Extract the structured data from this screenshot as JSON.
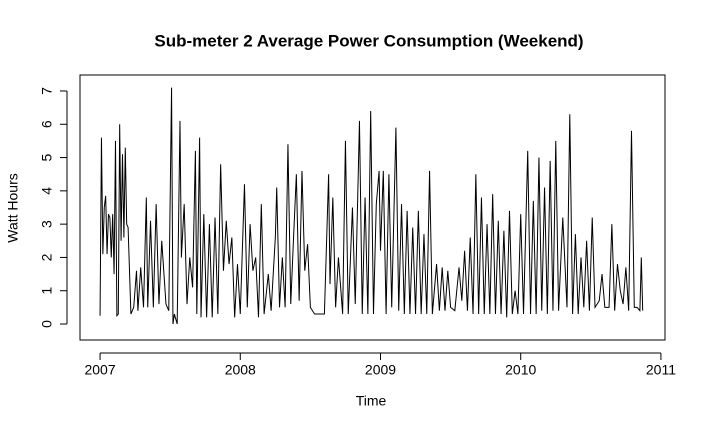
{
  "chart_data": {
    "type": "line",
    "title": "Sub-meter 2 Average Power Consumption (Weekend)",
    "xlabel": "Time",
    "ylabel": "Watt Hours",
    "color": "#000000",
    "xlim": [
      2006.857,
      2011.029
    ],
    "ylim": [
      -0.48,
      7.48
    ],
    "xticks": [
      2007,
      2008,
      2009,
      2010,
      2011
    ],
    "yticks": [
      0,
      1,
      2,
      3,
      4,
      5,
      6,
      7
    ],
    "x": [
      2007.0,
      2007.01,
      2007.02,
      2007.03,
      2007.04,
      2007.05,
      2007.06,
      2007.07,
      2007.08,
      2007.09,
      2007.1,
      2007.11,
      2007.12,
      2007.13,
      2007.14,
      2007.15,
      2007.16,
      2007.17,
      2007.18,
      2007.19,
      2007.2,
      2007.22,
      2007.24,
      2007.26,
      2007.27,
      2007.29,
      2007.31,
      2007.33,
      2007.34,
      2007.36,
      2007.38,
      2007.4,
      2007.42,
      2007.44,
      2007.47,
      2007.49,
      2007.51,
      2007.52,
      2007.53,
      2007.55,
      2007.57,
      2007.58,
      2007.6,
      2007.62,
      2007.64,
      2007.66,
      2007.68,
      2007.69,
      2007.71,
      2007.72,
      2007.74,
      2007.76,
      2007.78,
      2007.8,
      2007.82,
      2007.84,
      2007.86,
      2007.88,
      2007.9,
      2007.92,
      2007.94,
      2007.96,
      2007.98,
      2008.0,
      2008.03,
      2008.05,
      2008.07,
      2008.09,
      2008.11,
      2008.13,
      2008.15,
      2008.17,
      2008.2,
      2008.22,
      2008.25,
      2008.26,
      2008.28,
      2008.3,
      2008.32,
      2008.34,
      2008.36,
      2008.38,
      2008.4,
      2008.42,
      2008.44,
      2008.46,
      2008.48,
      2008.5,
      2008.53,
      2008.6,
      2008.63,
      2008.64,
      2008.66,
      2008.68,
      2008.7,
      2008.73,
      2008.75,
      2008.77,
      2008.8,
      2008.82,
      2008.85,
      2008.87,
      2008.89,
      2008.91,
      2008.93,
      2008.95,
      2008.97,
      2008.99,
      2009.0,
      2009.02,
      2009.04,
      2009.06,
      2009.08,
      2009.11,
      2009.13,
      2009.15,
      2009.17,
      2009.19,
      2009.21,
      2009.23,
      2009.25,
      2009.27,
      2009.29,
      2009.31,
      2009.33,
      2009.35,
      2009.37,
      2009.4,
      2009.42,
      2009.44,
      2009.46,
      2009.48,
      2009.5,
      2009.53,
      2009.56,
      2009.58,
      2009.6,
      2009.62,
      2009.64,
      2009.66,
      2009.68,
      2009.7,
      2009.72,
      2009.74,
      2009.76,
      2009.78,
      2009.8,
      2009.82,
      2009.84,
      2009.86,
      2009.88,
      2009.9,
      2009.92,
      2009.94,
      2009.96,
      2009.98,
      2010.0,
      2010.02,
      2010.05,
      2010.07,
      2010.09,
      2010.11,
      2010.13,
      2010.15,
      2010.17,
      2010.19,
      2010.21,
      2010.23,
      2010.25,
      2010.27,
      2010.3,
      2010.33,
      2010.35,
      2010.37,
      2010.39,
      2010.41,
      2010.43,
      2010.45,
      2010.47,
      2010.49,
      2010.51,
      2010.53,
      2010.56,
      2010.58,
      2010.6,
      2010.63,
      2010.65,
      2010.67,
      2010.69,
      2010.71,
      2010.73,
      2010.75,
      2010.77,
      2010.79,
      2010.81,
      2010.83,
      2010.85,
      2010.86,
      2010.87
    ],
    "values": [
      0.25,
      5.6,
      2.1,
      3.5,
      3.85,
      2.1,
      3.3,
      3.2,
      2.0,
      3.3,
      1.5,
      5.5,
      0.25,
      0.3,
      6.0,
      2.5,
      5.1,
      2.6,
      5.3,
      3.0,
      2.9,
      0.3,
      0.5,
      1.6,
      0.4,
      1.7,
      0.5,
      3.8,
      0.5,
      3.1,
      0.5,
      3.6,
      0.6,
      2.5,
      0.6,
      0.4,
      7.1,
      0.0,
      0.3,
      0.0,
      6.1,
      2.0,
      3.6,
      0.6,
      2.0,
      1.1,
      5.2,
      0.3,
      5.6,
      0.2,
      3.3,
      0.2,
      3.0,
      0.2,
      3.2,
      0.3,
      4.8,
      1.6,
      3.1,
      1.8,
      2.6,
      0.2,
      1.8,
      0.3,
      4.2,
      0.5,
      3.0,
      1.6,
      2.0,
      0.2,
      3.6,
      0.3,
      1.5,
      0.4,
      2.6,
      4.1,
      0.5,
      2.0,
      0.5,
      5.4,
      0.6,
      2.6,
      4.5,
      0.7,
      4.6,
      1.6,
      2.4,
      0.5,
      0.3,
      0.3,
      4.5,
      1.2,
      3.8,
      0.5,
      2.0,
      0.3,
      5.5,
      0.3,
      3.5,
      0.6,
      6.1,
      0.3,
      3.8,
      0.3,
      6.4,
      0.3,
      3.6,
      4.6,
      2.2,
      4.6,
      0.3,
      4.5,
      0.5,
      5.9,
      0.4,
      3.6,
      0.3,
      3.4,
      0.3,
      2.9,
      0.3,
      3.4,
      0.3,
      2.7,
      0.3,
      4.6,
      0.3,
      1.8,
      0.4,
      1.7,
      0.4,
      1.6,
      0.5,
      0.4,
      1.7,
      0.7,
      2.2,
      0.4,
      2.6,
      0.3,
      4.5,
      0.3,
      3.8,
      0.3,
      3.0,
      0.3,
      3.9,
      0.3,
      3.1,
      0.3,
      2.8,
      0.2,
      3.4,
      0.3,
      1.0,
      0.3,
      3.3,
      0.3,
      5.2,
      0.3,
      3.7,
      0.3,
      5.0,
      0.4,
      4.1,
      0.3,
      4.9,
      0.4,
      5.5,
      0.4,
      3.2,
      0.5,
      6.3,
      0.3,
      2.7,
      0.3,
      2.0,
      0.5,
      2.5,
      0.4,
      3.2,
      0.5,
      0.7,
      1.5,
      0.5,
      0.5,
      3.0,
      0.4,
      1.8,
      1.0,
      0.6,
      1.7,
      0.4,
      5.8,
      0.5,
      0.5,
      0.4,
      2.0,
      0.4
    ]
  }
}
